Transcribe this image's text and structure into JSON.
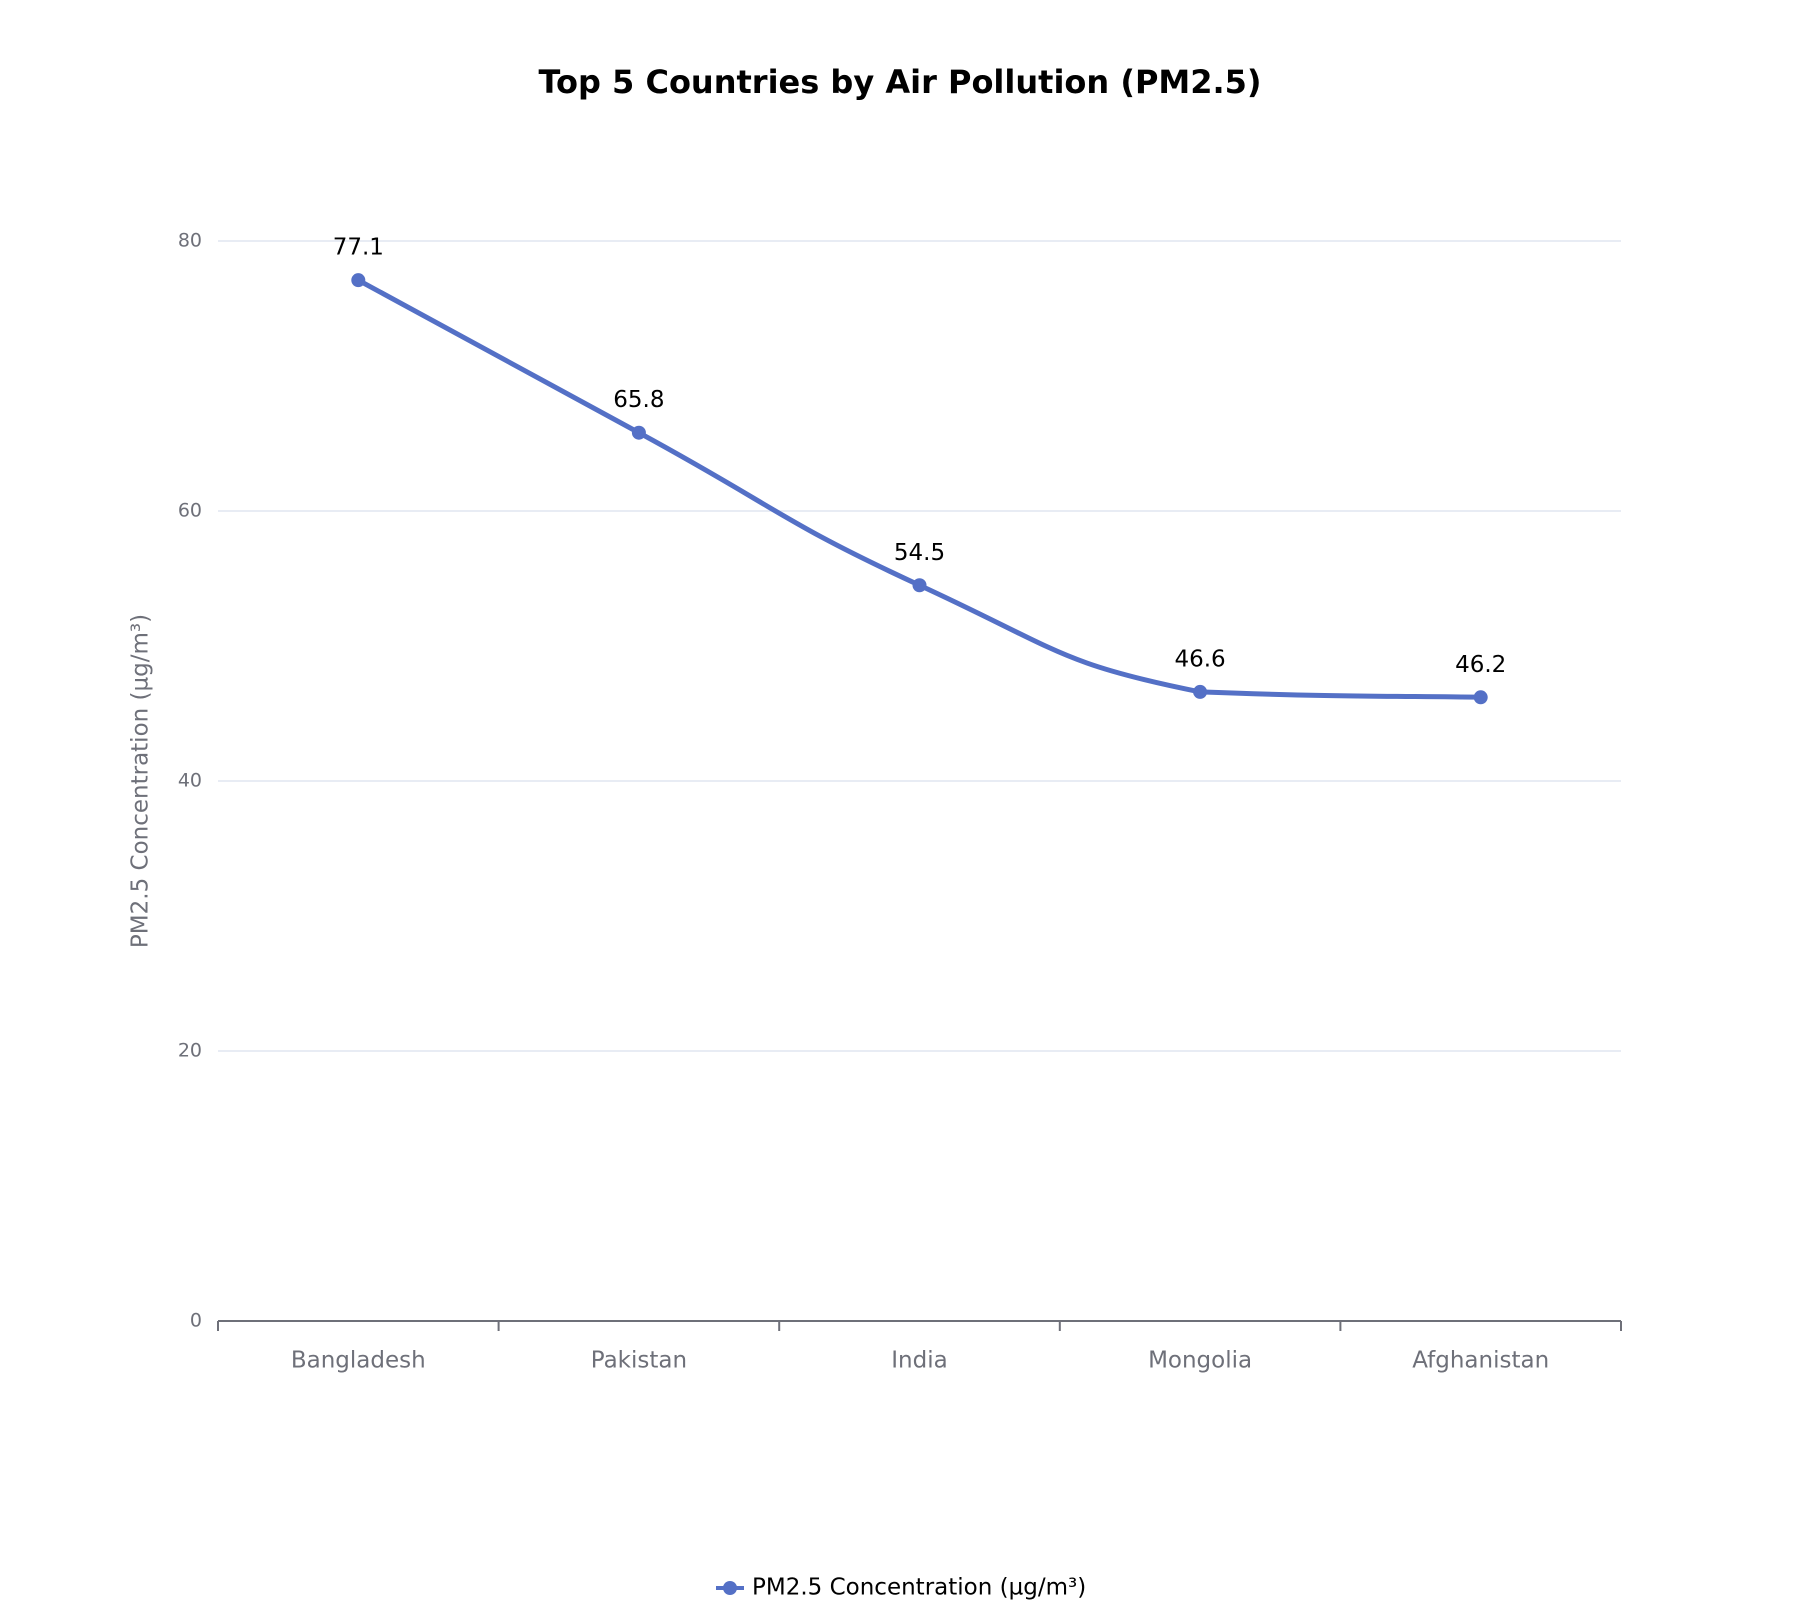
{
  "chart_data": {
    "type": "line",
    "title": "Top 5 Countries by Air Pollution (PM2.5)",
    "xlabel": "",
    "ylabel": "PM2.5 Concentration (µg/m³)",
    "categories": [
      "Bangladesh",
      "Pakistan",
      "India",
      "Mongolia",
      "Afghanistan"
    ],
    "series": [
      {
        "name": "PM2.5 Concentration (µg/m³)",
        "values": [
          77.1,
          65.8,
          54.5,
          46.6,
          46.2
        ],
        "color": "#5470c6",
        "smooth": true,
        "show_labels": true
      }
    ],
    "ylim": [
      0,
      80
    ],
    "yticks": [
      0,
      20,
      40,
      60,
      80
    ],
    "grid": {
      "horizontal": true,
      "vertical": false,
      "color": "#e0e6f1"
    },
    "legend": {
      "position": "bottom",
      "entries": [
        "PM2.5 Concentration (µg/m³)"
      ]
    }
  }
}
